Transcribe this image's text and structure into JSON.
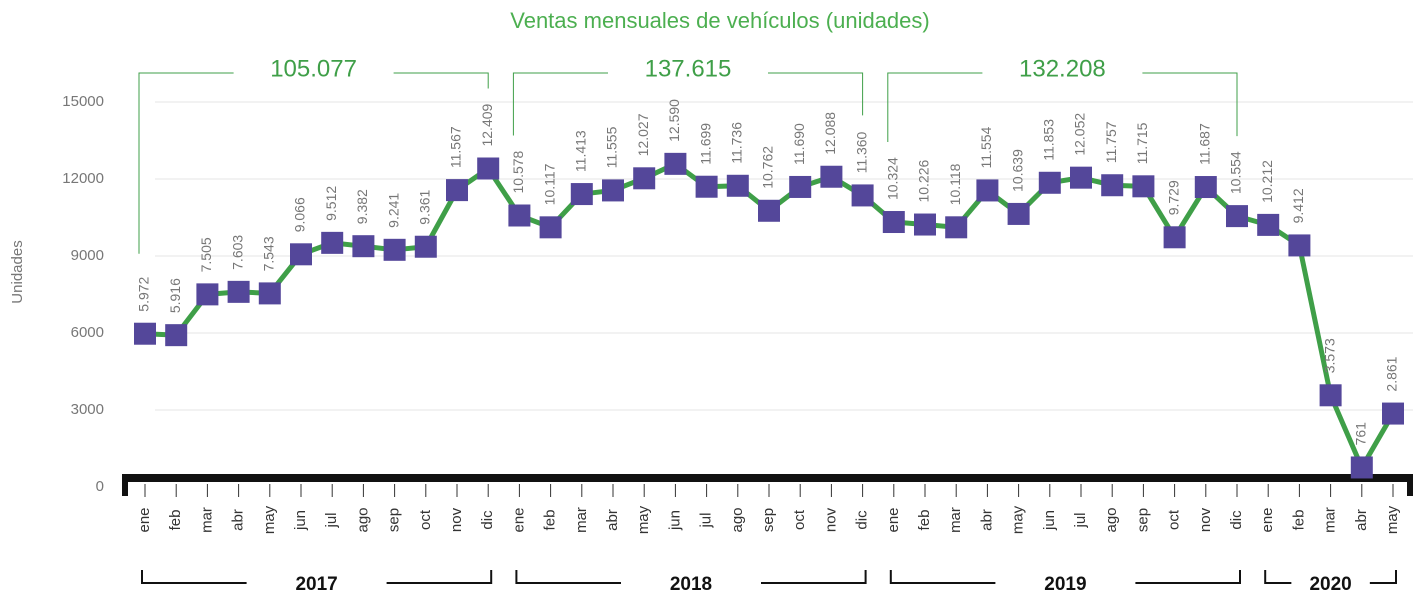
{
  "chart_data": {
    "type": "line",
    "title": "Ventas mensuales de vehículos  (unidades)",
    "y_label": "Unidades",
    "categories": [
      "ene",
      "feb",
      "mar",
      "abr",
      "may",
      "jun",
      "jul",
      "ago",
      "sep",
      "oct",
      "nov",
      "dic",
      "ene",
      "feb",
      "mar",
      "abr",
      "may",
      "jun",
      "jul",
      "ago",
      "sep",
      "oct",
      "nov",
      "dic",
      "ene",
      "feb",
      "mar",
      "abr",
      "may",
      "jun",
      "jul",
      "ago",
      "sep",
      "oct",
      "nov",
      "dic",
      "ene",
      "feb",
      "mar",
      "abr",
      "may"
    ],
    "series": [
      {
        "name": "Unidades",
        "color": "#3f9f48",
        "marker_color": "#54479a",
        "values": [
          5972,
          5916,
          7505,
          7603,
          7543,
          9066,
          9512,
          9382,
          9241,
          9361,
          11567,
          12409,
          10578,
          10117,
          11413,
          11555,
          12027,
          12590,
          11699,
          11736,
          10762,
          11690,
          12088,
          11360,
          10324,
          10226,
          10118,
          11554,
          10639,
          11853,
          12052,
          11757,
          11715,
          9729,
          11687,
          10554,
          10212,
          9412,
          3573,
          761,
          2861
        ],
        "value_labels": [
          "5.972",
          "5.916",
          "7.505",
          "7.603",
          "7.543",
          "9.066",
          "9.512",
          "9.382",
          "9.241",
          "9.361",
          "11.567",
          "12.409",
          "10.578",
          "10.117",
          "11.413",
          "11.555",
          "12.027",
          "12.590",
          "11.699",
          "11.736",
          "10.762",
          "11.690",
          "12.088",
          "11.360",
          "10.324",
          "10.226",
          "10.118",
          "11.554",
          "10.639",
          "11.853",
          "12.052",
          "11.757",
          "11.715",
          "9.729",
          "11.687",
          "10.554",
          "10.212",
          "9.412",
          "3.573",
          "761",
          "2.861"
        ]
      }
    ],
    "years": [
      {
        "name": "2017",
        "total": "105.077"
      },
      {
        "name": "2018",
        "total": "137.615"
      },
      {
        "name": "2019",
        "total": "132.208"
      },
      {
        "name": "2020"
      }
    ],
    "ylim": [
      0,
      15000
    ],
    "yticks": [
      0,
      3000,
      6000,
      9000,
      12000,
      15000
    ],
    "grid": true
  }
}
